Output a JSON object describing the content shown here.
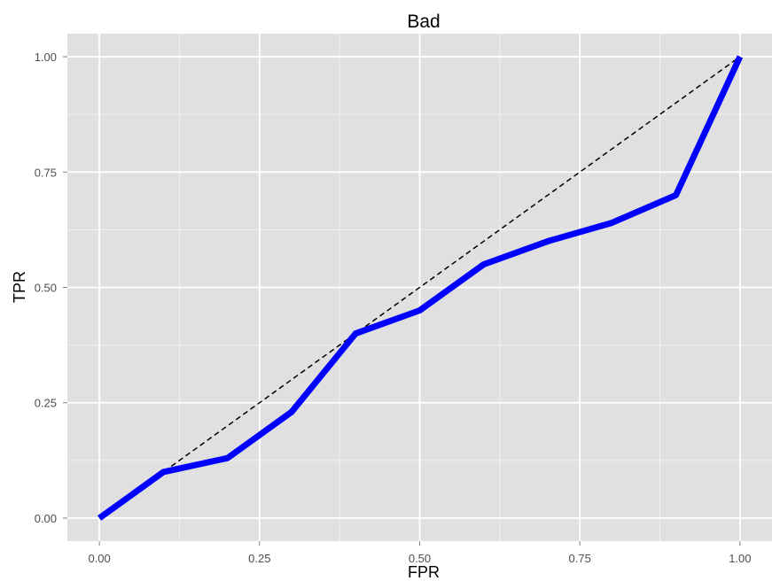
{
  "chart_data": {
    "type": "line",
    "title": "Bad",
    "xlabel": "FPR",
    "ylabel": "TPR",
    "xlim": [
      -0.05,
      1.05
    ],
    "ylim": [
      -0.05,
      1.05
    ],
    "x_ticks": [
      "0.00",
      "0.25",
      "0.50",
      "0.75",
      "1.00"
    ],
    "y_ticks": [
      "0.00",
      "0.25",
      "0.50",
      "0.75",
      "1.00"
    ],
    "grid": true,
    "series": [
      {
        "x": [
          0.0,
          0.1,
          0.2,
          0.3,
          0.4,
          0.5,
          0.6,
          0.7,
          0.8,
          0.9,
          1.0
        ],
        "y": [
          0.0,
          0.1,
          0.13,
          0.23,
          0.4,
          0.45,
          0.55,
          0.6,
          0.64,
          0.7,
          1.0
        ],
        "color": "#0000ff"
      }
    ],
    "reference_line": {
      "x": [
        0,
        1
      ],
      "y": [
        0,
        1
      ],
      "style": "dashed",
      "color": "#000000"
    }
  },
  "colors": {
    "panel_background": "#e0e0e0",
    "grid_major": "#ffffff",
    "grid_minor": "#f0f0f0"
  }
}
